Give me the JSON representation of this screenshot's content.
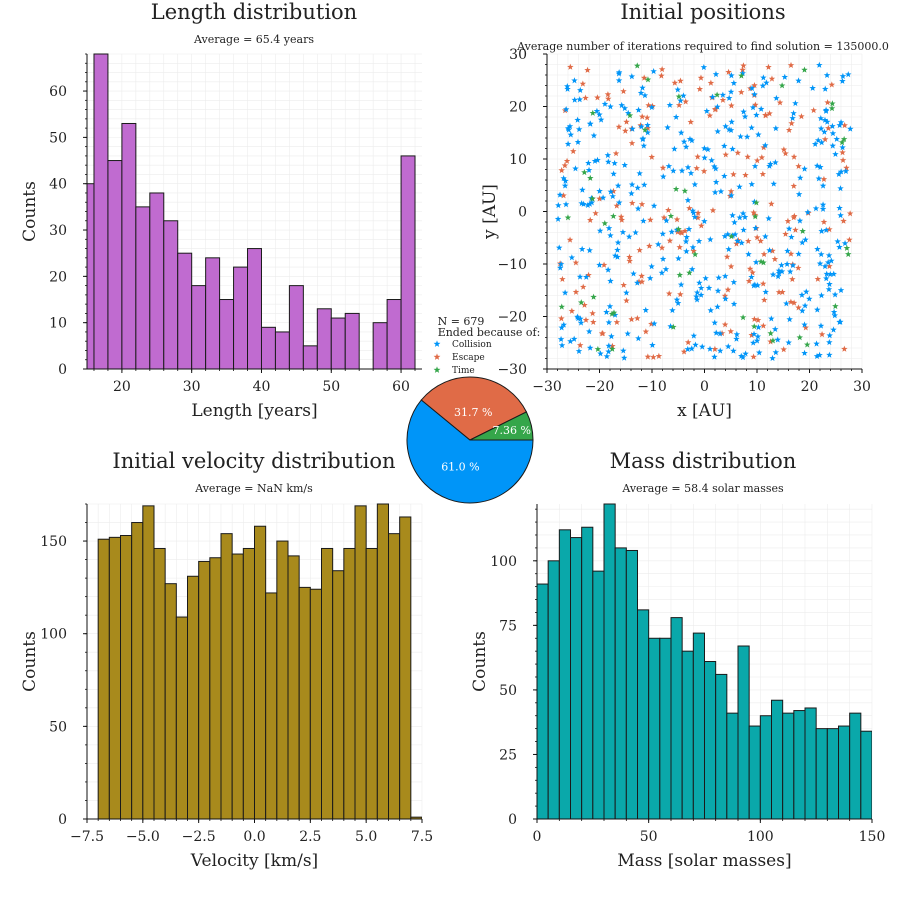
{
  "colors": {
    "length": "#c06bd0",
    "velocity": "#a88a1c",
    "mass": "#0aa8aa",
    "collision": "#0095f8",
    "escape": "#e06b47",
    "time": "#35a64a",
    "grid": "#ececec",
    "edge": "#1a1a1a"
  },
  "chart_data": [
    {
      "id": "length",
      "type": "bar",
      "title": "Length distribution",
      "subtitle": "Average = 65.4 years",
      "xlabel": "Length [years]",
      "ylabel": "Counts",
      "xlim": [
        15,
        63
      ],
      "ylim": [
        0,
        68
      ],
      "xticks": [
        20,
        30,
        40,
        50,
        60
      ],
      "yticks": [
        0,
        10,
        20,
        30,
        40,
        50,
        60
      ],
      "bin_width": 2,
      "bins": [
        {
          "x0": 14,
          "value": 40
        },
        {
          "x0": 16,
          "value": 68
        },
        {
          "x0": 18,
          "value": 45
        },
        {
          "x0": 20,
          "value": 53
        },
        {
          "x0": 22,
          "value": 35
        },
        {
          "x0": 24,
          "value": 38
        },
        {
          "x0": 26,
          "value": 32
        },
        {
          "x0": 28,
          "value": 25
        },
        {
          "x0": 30,
          "value": 18
        },
        {
          "x0": 32,
          "value": 24
        },
        {
          "x0": 34,
          "value": 15
        },
        {
          "x0": 36,
          "value": 22
        },
        {
          "x0": 38,
          "value": 26
        },
        {
          "x0": 40,
          "value": 9
        },
        {
          "x0": 42,
          "value": 8
        },
        {
          "x0": 44,
          "value": 18
        },
        {
          "x0": 46,
          "value": 5
        },
        {
          "x0": 48,
          "value": 13
        },
        {
          "x0": 50,
          "value": 11
        },
        {
          "x0": 52,
          "value": 12
        },
        {
          "x0": 54,
          "value": 0
        },
        {
          "x0": 56,
          "value": 10
        },
        {
          "x0": 58,
          "value": 15
        },
        {
          "x0": 60,
          "value": 46
        }
      ],
      "grid": true
    },
    {
      "id": "positions",
      "type": "scatter",
      "title": "Initial positions",
      "subtitle": "Average number of iterations required to find solution = 135000.0",
      "xlabel": "x [AU]",
      "ylabel": "y [AU]",
      "xlim": [
        -30,
        30
      ],
      "ylim": [
        -30,
        30
      ],
      "xticks": [
        -30,
        -20,
        -10,
        0,
        10,
        20,
        30
      ],
      "yticks": [
        -30,
        -20,
        -10,
        0,
        10,
        20,
        30
      ],
      "marker": "star",
      "series": [
        {
          "name": "Collision",
          "count": 414
        },
        {
          "name": "Escape",
          "count": 215
        },
        {
          "name": "Time",
          "count": 50
        }
      ],
      "legend_title": [
        "N = 679",
        "Ended because of:"
      ],
      "legend_placement": "bottom-left outside",
      "grid": true
    },
    {
      "id": "pie",
      "type": "pie",
      "slices": [
        {
          "name": "Collision",
          "value": 61.0,
          "label": "61.0 %"
        },
        {
          "name": "Escape",
          "value": 31.7,
          "label": "31.7 %"
        },
        {
          "name": "Time",
          "value": 7.36,
          "label": "7.36 %"
        }
      ]
    },
    {
      "id": "velocity",
      "type": "bar",
      "title": "Initial velocity distribution",
      "subtitle": "Average = NaN km/s",
      "xlabel": "Velocity [km/s]",
      "ylabel": "Counts",
      "xlim": [
        -7.5,
        7.5
      ],
      "ylim": [
        0,
        170
      ],
      "xticks": [
        -7.5,
        -5.0,
        -2.5,
        0.0,
        2.5,
        5.0,
        7.5
      ],
      "xticklabels": [
        "−7.5",
        "−5.0",
        "−2.5",
        "0.0",
        "2.5",
        "5.0",
        "7.5"
      ],
      "yticks": [
        0,
        50,
        100,
        150
      ],
      "bin_width": 0.5,
      "bins": [
        {
          "x0": -7.0,
          "value": 151
        },
        {
          "x0": -6.5,
          "value": 152
        },
        {
          "x0": -6.0,
          "value": 153
        },
        {
          "x0": -5.5,
          "value": 160
        },
        {
          "x0": -5.0,
          "value": 169
        },
        {
          "x0": -4.5,
          "value": 146
        },
        {
          "x0": -4.0,
          "value": 127
        },
        {
          "x0": -3.5,
          "value": 109
        },
        {
          "x0": -3.0,
          "value": 131
        },
        {
          "x0": -2.5,
          "value": 139
        },
        {
          "x0": -2.0,
          "value": 141
        },
        {
          "x0": -1.5,
          "value": 154
        },
        {
          "x0": -1.0,
          "value": 143
        },
        {
          "x0": -0.5,
          "value": 146
        },
        {
          "x0": 0.0,
          "value": 158
        },
        {
          "x0": 0.5,
          "value": 122
        },
        {
          "x0": 1.0,
          "value": 150
        },
        {
          "x0": 1.5,
          "value": 142
        },
        {
          "x0": 2.0,
          "value": 125
        },
        {
          "x0": 2.5,
          "value": 124
        },
        {
          "x0": 3.0,
          "value": 146
        },
        {
          "x0": 3.5,
          "value": 134
        },
        {
          "x0": 4.0,
          "value": 146
        },
        {
          "x0": 4.5,
          "value": 169
        },
        {
          "x0": 5.0,
          "value": 146
        },
        {
          "x0": 5.5,
          "value": 170
        },
        {
          "x0": 6.0,
          "value": 154
        },
        {
          "x0": 6.5,
          "value": 163
        },
        {
          "x0": 7.0,
          "value": 1
        }
      ],
      "grid": true
    },
    {
      "id": "mass",
      "type": "bar",
      "title": "Mass distribution",
      "subtitle": "Average = 58.4 solar masses",
      "xlabel": "Mass [solar masses]",
      "ylabel": "Counts",
      "xlim": [
        0,
        150
      ],
      "ylim": [
        0,
        122
      ],
      "xticks": [
        0,
        50,
        100,
        150
      ],
      "yticks": [
        0,
        25,
        50,
        75,
        100
      ],
      "bin_width": 5,
      "bins": [
        {
          "x0": 0,
          "value": 91
        },
        {
          "x0": 5,
          "value": 100
        },
        {
          "x0": 10,
          "value": 112
        },
        {
          "x0": 15,
          "value": 109
        },
        {
          "x0": 20,
          "value": 113
        },
        {
          "x0": 25,
          "value": 96
        },
        {
          "x0": 30,
          "value": 122
        },
        {
          "x0": 35,
          "value": 105
        },
        {
          "x0": 40,
          "value": 104
        },
        {
          "x0": 45,
          "value": 81
        },
        {
          "x0": 50,
          "value": 70
        },
        {
          "x0": 55,
          "value": 70
        },
        {
          "x0": 60,
          "value": 78
        },
        {
          "x0": 65,
          "value": 65
        },
        {
          "x0": 70,
          "value": 72
        },
        {
          "x0": 75,
          "value": 61
        },
        {
          "x0": 80,
          "value": 56
        },
        {
          "x0": 85,
          "value": 41
        },
        {
          "x0": 90,
          "value": 67
        },
        {
          "x0": 95,
          "value": 36
        },
        {
          "x0": 100,
          "value": 40
        },
        {
          "x0": 105,
          "value": 46
        },
        {
          "x0": 110,
          "value": 41
        },
        {
          "x0": 115,
          "value": 42
        },
        {
          "x0": 120,
          "value": 43
        },
        {
          "x0": 125,
          "value": 35
        },
        {
          "x0": 130,
          "value": 35
        },
        {
          "x0": 135,
          "value": 36
        },
        {
          "x0": 140,
          "value": 41
        },
        {
          "x0": 145,
          "value": 34
        }
      ],
      "grid": true
    }
  ]
}
